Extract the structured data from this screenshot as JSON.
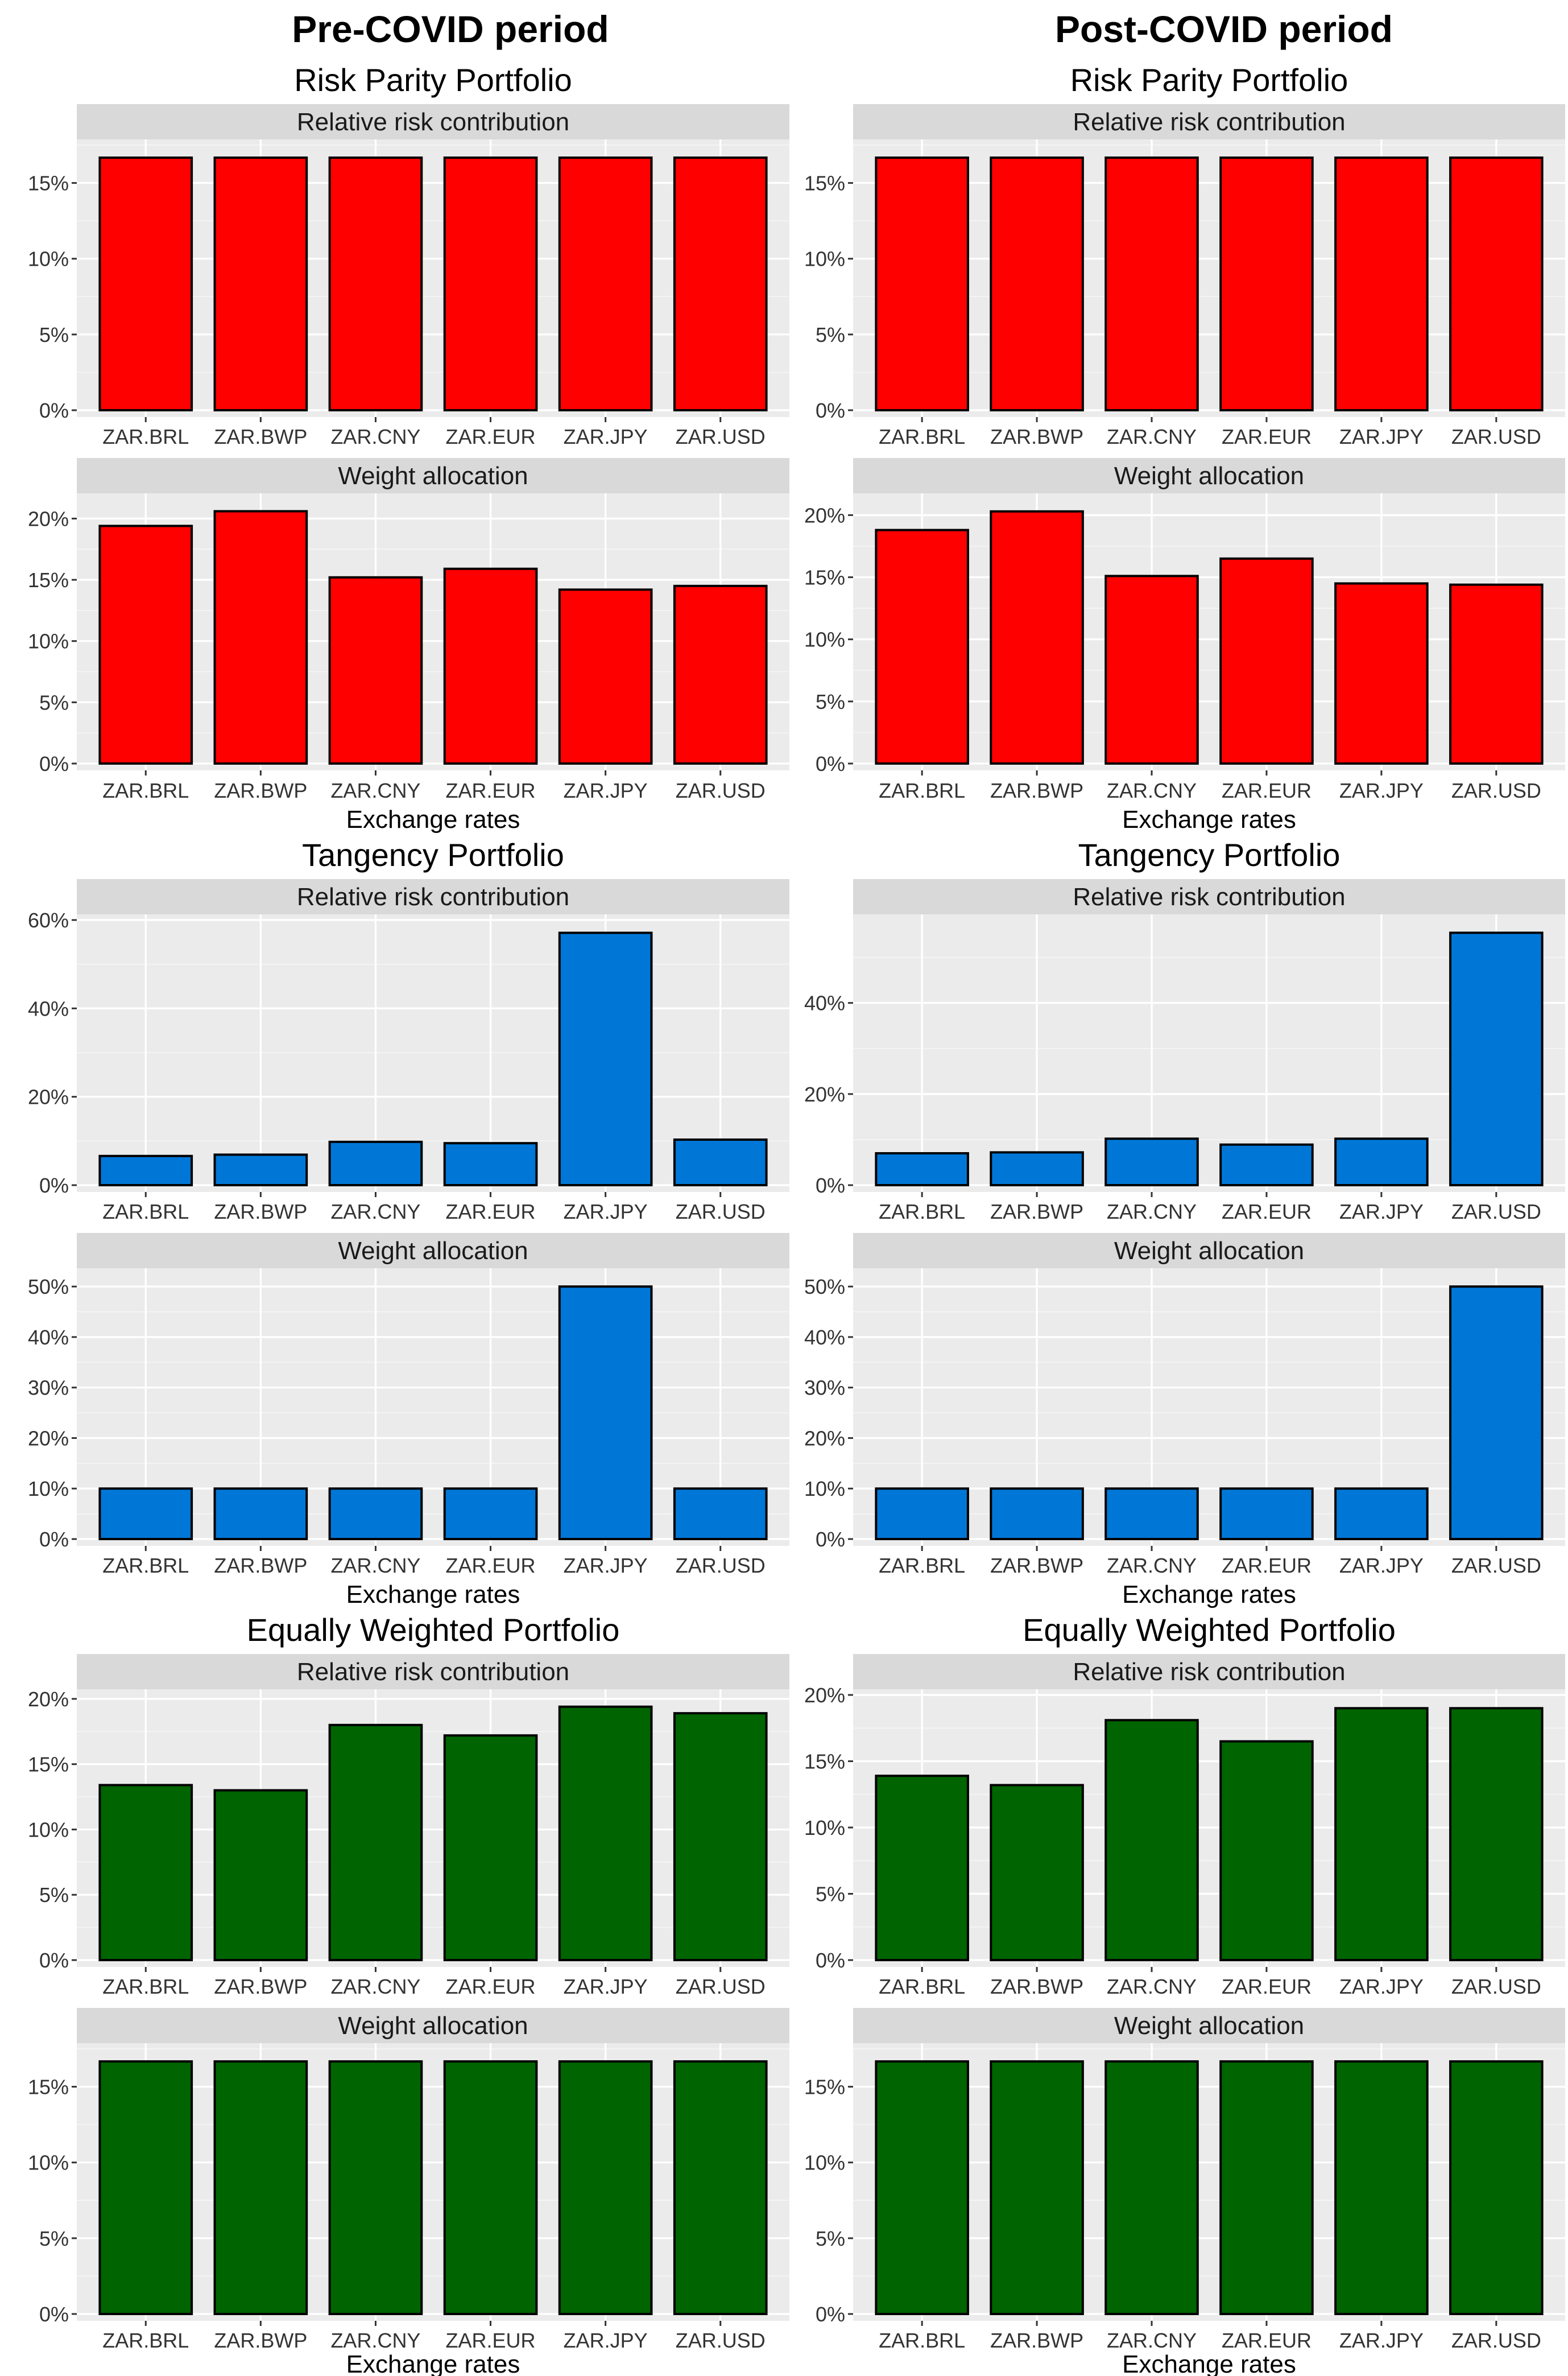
{
  "column_titles": [
    "Pre-COVID period",
    "Post-COVID period"
  ],
  "x_axis_title": "Exchange rates",
  "colors": {
    "risk_parity": "#ff0000",
    "tangency": "#0077d6",
    "equal": "#006400",
    "panel_bg": "#ebebeb",
    "strip_bg": "#d9d9d9"
  },
  "chart_data": [
    {
      "type": "bar",
      "period": "Pre-COVID period",
      "portfolio": "Risk Parity Portfolio",
      "panel": "Relative risk contribution",
      "categories": [
        "ZAR.BRL",
        "ZAR.BWP",
        "ZAR.CNY",
        "ZAR.EUR",
        "ZAR.JPY",
        "ZAR.USD"
      ],
      "values": [
        16.67,
        16.67,
        16.67,
        16.67,
        16.67,
        16.67
      ],
      "ylim": [
        0,
        17.5
      ],
      "yticks": [
        0,
        5,
        10,
        15
      ],
      "ytick_labels": [
        "0%",
        "5%",
        "10%",
        "15%"
      ],
      "color": "#ff0000"
    },
    {
      "type": "bar",
      "period": "Pre-COVID period",
      "portfolio": "Risk Parity Portfolio",
      "panel": "Weight allocation",
      "categories": [
        "ZAR.BRL",
        "ZAR.BWP",
        "ZAR.CNY",
        "ZAR.EUR",
        "ZAR.JPY",
        "ZAR.USD"
      ],
      "values": [
        19.4,
        20.6,
        15.2,
        15.9,
        14.2,
        14.5
      ],
      "ylim": [
        0,
        21.6
      ],
      "yticks": [
        0,
        5,
        10,
        15,
        20
      ],
      "ytick_labels": [
        "0%",
        "5%",
        "10%",
        "15%",
        "20%"
      ],
      "color": "#ff0000"
    },
    {
      "type": "bar",
      "period": "Pre-COVID period",
      "portfolio": "Tangency Portfolio",
      "panel": "Relative risk contribution",
      "categories": [
        "ZAR.BRL",
        "ZAR.BWP",
        "ZAR.CNY",
        "ZAR.EUR",
        "ZAR.JPY",
        "ZAR.USD"
      ],
      "values": [
        6.6,
        6.9,
        9.8,
        9.5,
        57.1,
        10.3
      ],
      "ylim": [
        0,
        60
      ],
      "yticks": [
        0,
        20,
        40,
        60
      ],
      "ytick_labels": [
        "0%",
        "20%",
        "40%",
        "60%"
      ],
      "color": "#0077d6"
    },
    {
      "type": "bar",
      "period": "Pre-COVID period",
      "portfolio": "Tangency Portfolio",
      "panel": "Weight allocation",
      "categories": [
        "ZAR.BRL",
        "ZAR.BWP",
        "ZAR.CNY",
        "ZAR.EUR",
        "ZAR.JPY",
        "ZAR.USD"
      ],
      "values": [
        10,
        10,
        10,
        10,
        50,
        10
      ],
      "ylim": [
        0,
        52.5
      ],
      "yticks": [
        0,
        10,
        20,
        30,
        40,
        50
      ],
      "ytick_labels": [
        "0%",
        "10%",
        "20%",
        "30%",
        "40%",
        "50%"
      ],
      "color": "#0077d6"
    },
    {
      "type": "bar",
      "period": "Pre-COVID period",
      "portfolio": "Equally Weighted Portfolio",
      "panel": "Relative risk contribution",
      "categories": [
        "ZAR.BRL",
        "ZAR.BWP",
        "ZAR.CNY",
        "ZAR.EUR",
        "ZAR.JPY",
        "ZAR.USD"
      ],
      "values": [
        13.4,
        13.0,
        18.0,
        17.2,
        19.4,
        18.9
      ],
      "ylim": [
        0,
        20.3
      ],
      "yticks": [
        0,
        5,
        10,
        15,
        20
      ],
      "ytick_labels": [
        "0%",
        "5%",
        "10%",
        "15%",
        "20%"
      ],
      "color": "#006400"
    },
    {
      "type": "bar",
      "period": "Pre-COVID period",
      "portfolio": "Equally Weighted Portfolio",
      "panel": "Weight allocation",
      "categories": [
        "ZAR.BRL",
        "ZAR.BWP",
        "ZAR.CNY",
        "ZAR.EUR",
        "ZAR.JPY",
        "ZAR.USD"
      ],
      "values": [
        16.67,
        16.67,
        16.67,
        16.67,
        16.67,
        16.67
      ],
      "ylim": [
        0,
        17.5
      ],
      "yticks": [
        0,
        5,
        10,
        15
      ],
      "ytick_labels": [
        "0%",
        "5%",
        "10%",
        "15%"
      ],
      "color": "#006400"
    },
    {
      "type": "bar",
      "period": "Post-COVID period",
      "portfolio": "Risk Parity Portfolio",
      "panel": "Relative risk contribution",
      "categories": [
        "ZAR.BRL",
        "ZAR.BWP",
        "ZAR.CNY",
        "ZAR.EUR",
        "ZAR.JPY",
        "ZAR.USD"
      ],
      "values": [
        16.67,
        16.67,
        16.67,
        16.67,
        16.67,
        16.67
      ],
      "ylim": [
        0,
        17.5
      ],
      "yticks": [
        0,
        5,
        10,
        15
      ],
      "ytick_labels": [
        "0%",
        "5%",
        "10%",
        "15%"
      ],
      "color": "#ff0000"
    },
    {
      "type": "bar",
      "period": "Post-COVID period",
      "portfolio": "Risk Parity Portfolio",
      "panel": "Weight allocation",
      "categories": [
        "ZAR.BRL",
        "ZAR.BWP",
        "ZAR.CNY",
        "ZAR.EUR",
        "ZAR.JPY",
        "ZAR.USD"
      ],
      "values": [
        18.8,
        20.3,
        15.1,
        16.5,
        14.5,
        14.4
      ],
      "ylim": [
        0,
        21.3
      ],
      "yticks": [
        0,
        5,
        10,
        15,
        20
      ],
      "ytick_labels": [
        "0%",
        "5%",
        "10%",
        "15%",
        "20%"
      ],
      "color": "#ff0000"
    },
    {
      "type": "bar",
      "period": "Post-COVID period",
      "portfolio": "Tangency Portfolio",
      "panel": "Relative risk contribution",
      "categories": [
        "ZAR.BRL",
        "ZAR.BWP",
        "ZAR.CNY",
        "ZAR.EUR",
        "ZAR.JPY",
        "ZAR.USD"
      ],
      "values": [
        7.0,
        7.2,
        10.2,
        8.9,
        10.2,
        55.4
      ],
      "ylim": [
        0,
        58.2
      ],
      "yticks": [
        0,
        20,
        40
      ],
      "ytick_labels": [
        "0%",
        "20%",
        "40%"
      ],
      "color": "#0077d6"
    },
    {
      "type": "bar",
      "period": "Post-COVID period",
      "portfolio": "Tangency Portfolio",
      "panel": "Weight allocation",
      "categories": [
        "ZAR.BRL",
        "ZAR.BWP",
        "ZAR.CNY",
        "ZAR.EUR",
        "ZAR.JPY",
        "ZAR.USD"
      ],
      "values": [
        10,
        10,
        10,
        10,
        10,
        50
      ],
      "ylim": [
        0,
        52.5
      ],
      "yticks": [
        0,
        10,
        20,
        30,
        40,
        50
      ],
      "ytick_labels": [
        "0%",
        "10%",
        "20%",
        "30%",
        "40%",
        "50%"
      ],
      "color": "#0077d6"
    },
    {
      "type": "bar",
      "period": "Post-COVID period",
      "portfolio": "Equally Weighted Portfolio",
      "panel": "Relative risk contribution",
      "categories": [
        "ZAR.BRL",
        "ZAR.BWP",
        "ZAR.CNY",
        "ZAR.EUR",
        "ZAR.JPY",
        "ZAR.USD"
      ],
      "values": [
        13.9,
        13.2,
        18.1,
        16.5,
        19.0,
        19.0
      ],
      "ylim": [
        0,
        20.0
      ],
      "yticks": [
        0,
        5,
        10,
        15,
        20
      ],
      "ytick_labels": [
        "0%",
        "5%",
        "10%",
        "15%",
        "20%"
      ],
      "color": "#006400"
    },
    {
      "type": "bar",
      "period": "Post-COVID period",
      "portfolio": "Equally Weighted Portfolio",
      "panel": "Weight allocation",
      "categories": [
        "ZAR.BRL",
        "ZAR.BWP",
        "ZAR.CNY",
        "ZAR.EUR",
        "ZAR.JPY",
        "ZAR.USD"
      ],
      "values": [
        16.67,
        16.67,
        16.67,
        16.67,
        16.67,
        16.67
      ],
      "ylim": [
        0,
        17.5
      ],
      "yticks": [
        0,
        5,
        10,
        15
      ],
      "ytick_labels": [
        "0%",
        "5%",
        "10%",
        "15%"
      ],
      "color": "#006400"
    }
  ]
}
